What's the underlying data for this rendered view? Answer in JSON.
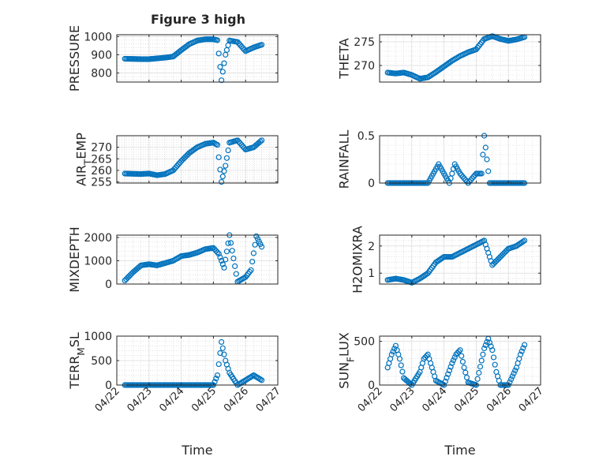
{
  "figure": {
    "title": "Figure 3 high",
    "marker_color": "#0072BD",
    "axis_color": "#262626",
    "grid_color": "#cfcfcf",
    "x_tick_labels": [
      "04/22",
      "04/23",
      "04/24",
      "04/25",
      "04/26",
      "04/27"
    ]
  },
  "chart_data": [
    {
      "type": "scatter",
      "ylabel": "PRESSURE",
      "xlabel": "",
      "xlim": [
        "04/22",
        "04/27"
      ],
      "ylim": [
        750,
        1010
      ],
      "yticks": [
        800,
        900,
        1000
      ],
      "ytick_labels": [
        "800",
        "900",
        "1000"
      ],
      "grid": true,
      "series": [
        {
          "x": [
            "04/22 06:00",
            "04/22 12:00",
            "04/22 18:00",
            "04/23 00:00",
            "04/23 06:00",
            "04/23 12:00",
            "04/23 18:00",
            "04/24 00:00",
            "04/24 06:00",
            "04/24 12:00",
            "04/24 18:00",
            "04/25 00:00",
            "04/25 03:00",
            "04/25 06:00",
            "04/25 09:00",
            "04/25 12:00",
            "04/25 18:00",
            "04/26 00:00",
            "04/26 06:00",
            "04/26 12:00"
          ],
          "y": [
            878,
            877,
            876,
            876,
            880,
            884,
            890,
            925,
            958,
            978,
            985,
            985,
            980,
            760,
            900,
            978,
            970,
            920,
            940,
            955
          ]
        }
      ]
    },
    {
      "type": "scatter",
      "ylabel": "THETA",
      "xlabel": "",
      "xlim": [
        "04/22",
        "04/27"
      ],
      "ylim": [
        266.5,
        276.5
      ],
      "yticks": [
        270,
        275
      ],
      "ytick_labels": [
        "270",
        "275"
      ],
      "grid": true,
      "series": [
        {
          "x": [
            "04/22 06:00",
            "04/22 12:00",
            "04/22 18:00",
            "04/23 00:00",
            "04/23 06:00",
            "04/23 12:00",
            "04/23 18:00",
            "04/24 00:00",
            "04/24 06:00",
            "04/24 12:00",
            "04/24 18:00",
            "04/25 00:00",
            "04/25 06:00",
            "04/25 12:00",
            "04/25 18:00",
            "04/26 00:00",
            "04/26 06:00",
            "04/26 12:00"
          ],
          "y": [
            268.5,
            268.3,
            268.5,
            268.0,
            267.2,
            267.5,
            268.6,
            269.8,
            271.0,
            272.0,
            272.8,
            273.4,
            275.6,
            276.2,
            275.6,
            275.2,
            275.5,
            276.0
          ]
        }
      ]
    },
    {
      "type": "scatter",
      "ylabel": "AIR_TEMP",
      "xlabel": "",
      "xlim": [
        "04/22",
        "04/27"
      ],
      "ylim": [
        254.5,
        275
      ],
      "yticks": [
        255,
        260,
        265,
        270
      ],
      "ytick_labels": [
        "255",
        "260",
        "265",
        "270"
      ],
      "grid": true,
      "series": [
        {
          "x": [
            "04/22 06:00",
            "04/22 12:00",
            "04/22 18:00",
            "04/23 00:00",
            "04/23 06:00",
            "04/23 12:00",
            "04/23 18:00",
            "04/24 00:00",
            "04/24 06:00",
            "04/24 12:00",
            "04/24 18:00",
            "04/25 00:00",
            "04/25 03:00",
            "04/25 06:00",
            "04/25 09:00",
            "04/25 12:00",
            "04/25 18:00",
            "04/26 00:00",
            "04/26 06:00",
            "04/26 12:00"
          ],
          "y": [
            258.6,
            258.5,
            258.4,
            258.6,
            257.9,
            258.4,
            260.0,
            264.0,
            267.5,
            270.0,
            271.5,
            272.0,
            271.0,
            255.0,
            262.0,
            272.0,
            273.0,
            269.0,
            270.0,
            273.0
          ]
        }
      ]
    },
    {
      "type": "scatter",
      "ylabel": "RAINFALL",
      "xlabel": "",
      "xlim": [
        "04/22",
        "04/27"
      ],
      "ylim": [
        0,
        0.5
      ],
      "yticks": [
        0,
        0.5
      ],
      "ytick_labels": [
        "0",
        "0.5"
      ],
      "grid": true,
      "series": [
        {
          "x": [
            "04/22 06:00",
            "04/22 12:00",
            "04/23 00:00",
            "04/23 12:00",
            "04/23 20:00",
            "04/24 00:00",
            "04/24 04:00",
            "04/24 08:00",
            "04/24 12:00",
            "04/24 18:00",
            "04/25 00:00",
            "04/25 04:00",
            "04/25 06:00",
            "04/25 10:00",
            "04/25 18:00",
            "04/26 06:00",
            "04/26 12:00"
          ],
          "y": [
            0,
            0,
            0,
            0,
            0.2,
            0.1,
            0,
            0.2,
            0.1,
            0,
            0.1,
            0.1,
            0.5,
            0,
            0,
            0,
            0
          ]
        }
      ]
    },
    {
      "type": "scatter",
      "ylabel": "MIXDEPTH",
      "xlabel": "",
      "xlim": [
        "04/22",
        "04/27"
      ],
      "ylim": [
        0,
        2100
      ],
      "yticks": [
        0,
        1000,
        2000
      ],
      "ytick_labels": [
        "0",
        "1000",
        "2000"
      ],
      "grid": true,
      "series": [
        {
          "x": [
            "04/22 06:00",
            "04/22 12:00",
            "04/22 18:00",
            "04/23 00:00",
            "04/23 06:00",
            "04/23 12:00",
            "04/23 18:00",
            "04/24 00:00",
            "04/24 06:00",
            "04/24 12:00",
            "04/24 18:00",
            "04/25 00:00",
            "04/25 04:00",
            "04/25 08:00",
            "04/25 12:00",
            "04/25 18:00",
            "04/26 00:00",
            "04/26 04:00",
            "04/26 08:00",
            "04/26 12:00"
          ],
          "y": [
            150,
            500,
            800,
            850,
            800,
            900,
            1000,
            1200,
            1250,
            1350,
            1500,
            1550,
            1300,
            700,
            2100,
            100,
            300,
            600,
            2050,
            1600
          ]
        }
      ]
    },
    {
      "type": "scatter",
      "ylabel": "H2OMIXRA",
      "xlabel": "",
      "xlim": [
        "04/22",
        "04/27"
      ],
      "ylim": [
        0.6,
        2.4
      ],
      "yticks": [
        1,
        2
      ],
      "ytick_labels": [
        "1",
        "2"
      ],
      "grid": true,
      "series": [
        {
          "x": [
            "04/22 06:00",
            "04/22 12:00",
            "04/22 18:00",
            "04/23 00:00",
            "04/23 06:00",
            "04/23 12:00",
            "04/23 18:00",
            "04/24 00:00",
            "04/24 06:00",
            "04/24 12:00",
            "04/24 18:00",
            "04/25 00:00",
            "04/25 06:00",
            "04/25 12:00",
            "04/25 18:00",
            "04/26 00:00",
            "04/26 06:00",
            "04/26 12:00"
          ],
          "y": [
            0.75,
            0.8,
            0.75,
            0.65,
            0.8,
            1.0,
            1.4,
            1.6,
            1.6,
            1.75,
            1.9,
            2.05,
            2.2,
            1.3,
            1.6,
            1.9,
            2.0,
            2.2
          ]
        }
      ]
    },
    {
      "type": "scatter",
      "ylabel": "TERR_MSL",
      "xlabel": "Time",
      "xlim": [
        "04/22",
        "04/27"
      ],
      "ylim": [
        0,
        1000
      ],
      "yticks": [
        0,
        500,
        1000
      ],
      "ytick_labels": [
        "0",
        "500",
        "1000"
      ],
      "grid": true,
      "series": [
        {
          "x": [
            "04/22 06:00",
            "04/22 12:00",
            "04/23 00:00",
            "04/23 12:00",
            "04/24 00:00",
            "04/24 12:00",
            "04/25 00:00",
            "04/25 03:00",
            "04/25 06:00",
            "04/25 09:00",
            "04/25 12:00",
            "04/25 18:00",
            "04/26 00:00",
            "04/26 06:00",
            "04/26 12:00"
          ],
          "y": [
            0,
            0,
            0,
            0,
            0,
            0,
            0,
            200,
            880,
            500,
            250,
            0,
            100,
            200,
            100
          ]
        }
      ]
    },
    {
      "type": "scatter",
      "ylabel": "SUN_FLUX",
      "xlabel": "Time",
      "xlim": [
        "04/22",
        "04/27"
      ],
      "ylim": [
        0,
        560
      ],
      "yticks": [
        0,
        500
      ],
      "ytick_labels": [
        "0",
        "500"
      ],
      "grid": true,
      "series": [
        {
          "x": [
            "04/22 06:00",
            "04/22 09:00",
            "04/22 12:00",
            "04/22 15:00",
            "04/22 18:00",
            "04/23 00:00",
            "04/23 06:00",
            "04/23 09:00",
            "04/23 12:00",
            "04/23 15:00",
            "04/23 18:00",
            "04/24 00:00",
            "04/24 06:00",
            "04/24 09:00",
            "04/24 12:00",
            "04/24 15:00",
            "04/24 18:00",
            "04/25 00:00",
            "04/25 06:00",
            "04/25 09:00",
            "04/25 12:00",
            "04/25 15:00",
            "04/25 18:00",
            "04/26 00:00",
            "04/26 06:00",
            "04/26 09:00",
            "04/26 12:00"
          ],
          "y": [
            200,
            350,
            450,
            300,
            80,
            0,
            150,
            300,
            350,
            200,
            50,
            0,
            250,
            350,
            400,
            200,
            30,
            0,
            420,
            530,
            400,
            150,
            0,
            0,
            200,
            350,
            460
          ]
        }
      ]
    }
  ]
}
